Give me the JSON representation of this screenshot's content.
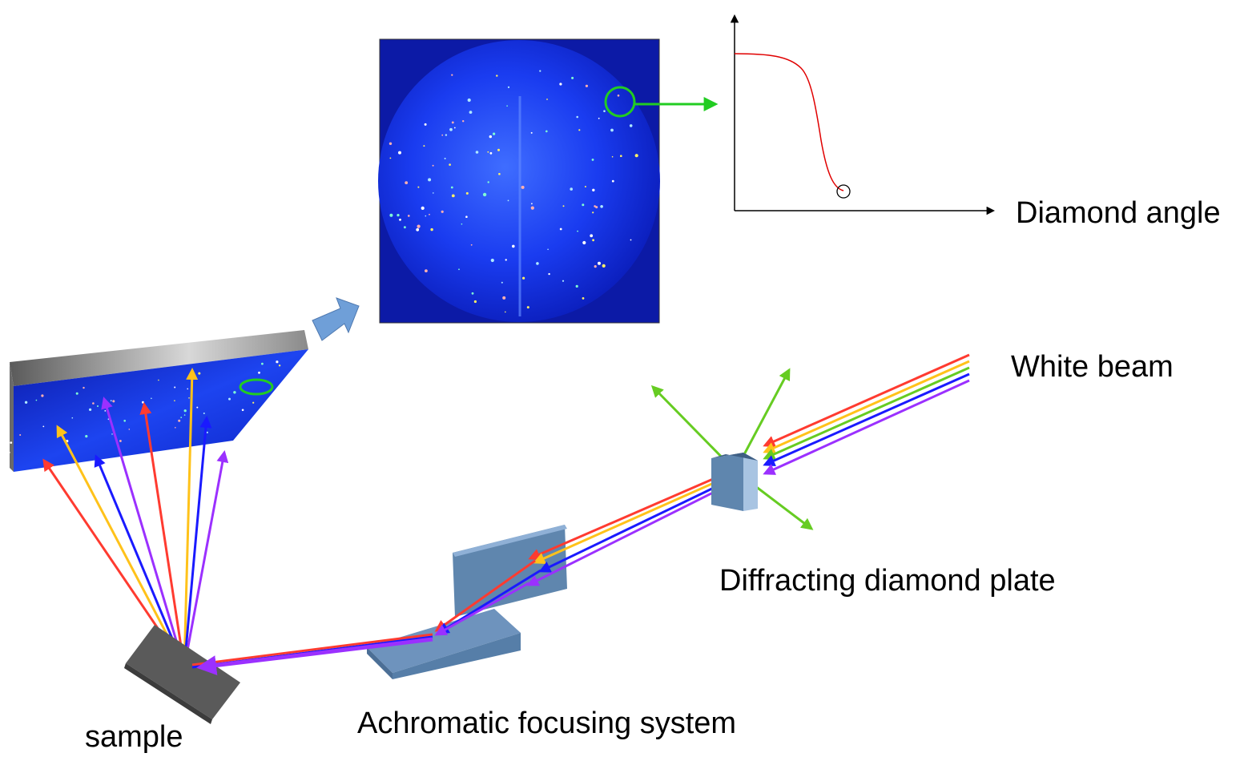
{
  "labels": {
    "white_beam": "White beam",
    "diamond_angle": "Diamond angle",
    "diffracting_plate": "Diffracting diamond plate",
    "focusing_system": "Achromatic focusing system",
    "sample": "sample"
  },
  "colors": {
    "beam_red": "#ff3b30",
    "beam_yellow": "#ffc21a",
    "beam_green": "#66cc22",
    "beam_blue": "#1a1aff",
    "beam_violet": "#9b30ff",
    "diffracted_green": "#66cc22",
    "detector_blue": "#1535e6",
    "focusing_block": "#6e93bd",
    "sample_block": "#5a5a5a",
    "curve_red": "#e00000",
    "highlight_circle": "#22cc22",
    "transfer_arrow": "#6f9fd8"
  },
  "icons": {
    "transfer_arrow": "block-arrow-icon",
    "highlight": "circle-marker-icon"
  }
}
